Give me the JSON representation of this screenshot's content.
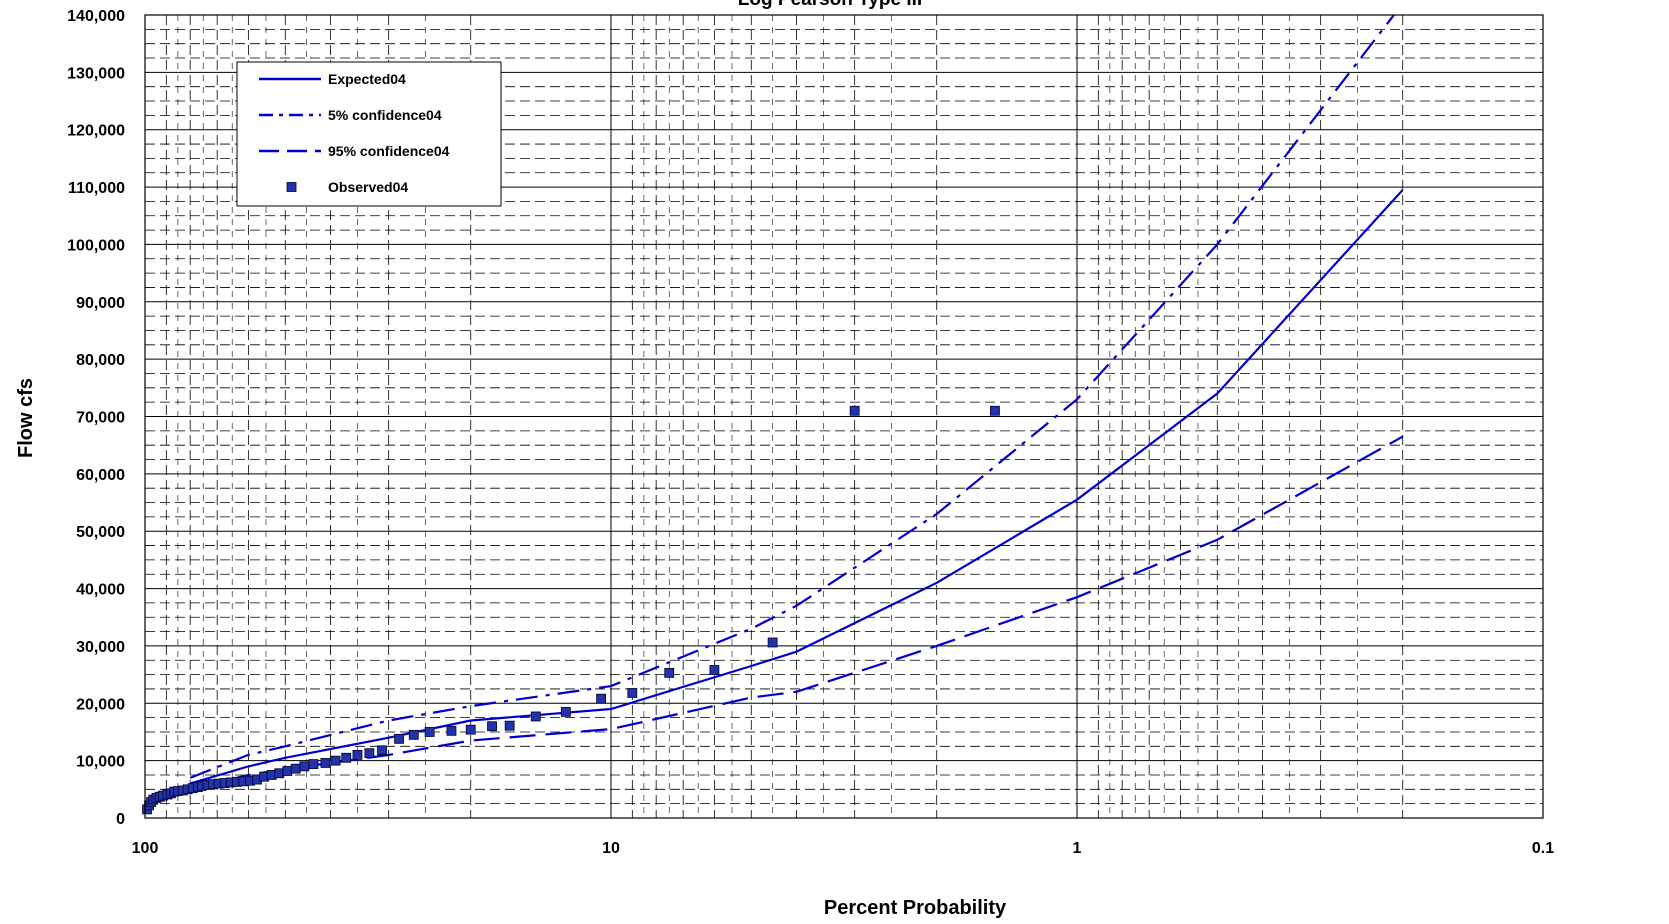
{
  "chart_data": {
    "type": "line",
    "title": "Log Pearson Type III",
    "xlabel": "Percent Probability",
    "ylabel": "Flow cfs",
    "x_scale": "log",
    "x_reversed": true,
    "xlim": [
      100,
      0.1
    ],
    "ylim": [
      0,
      140000
    ],
    "x_ticks": [
      100,
      10,
      1,
      0.1
    ],
    "x_tick_labels": [
      "100",
      "10",
      "1",
      "0.1"
    ],
    "y_ticks": [
      0,
      10000,
      20000,
      30000,
      40000,
      50000,
      60000,
      70000,
      80000,
      90000,
      100000,
      110000,
      120000,
      130000,
      140000
    ],
    "y_tick_labels": [
      "0",
      "10,000",
      "20,000",
      "30,000",
      "40,000",
      "50,000",
      "60,000",
      "70,000",
      "80,000",
      "90,000",
      "100,000",
      "110,000",
      "120,000",
      "130,000",
      "140,000"
    ],
    "grid": true,
    "legend_position": "top-left",
    "colors": {
      "series": "#0000CC",
      "marker": "#2233AA",
      "grid": "#000000"
    },
    "series": [
      {
        "name": "Expected04",
        "style": "solid",
        "x": [
          80,
          60,
          50,
          30,
          20,
          10,
          5,
          4,
          2,
          1,
          0.5,
          0.2
        ],
        "y": [
          6000,
          9000,
          10500,
          14000,
          17000,
          19000,
          26500,
          29000,
          41000,
          55500,
          74000,
          109500
        ]
      },
      {
        "name": "5% confidence04",
        "style": "dash-dot",
        "x": [
          80,
          60,
          50,
          30,
          20,
          10,
          5,
          4,
          2,
          1,
          0.5,
          0.2
        ],
        "y": [
          7000,
          11000,
          12500,
          17000,
          19500,
          23000,
          33000,
          37000,
          53000,
          73000,
          100000,
          142000
        ]
      },
      {
        "name": "95% confidence04",
        "style": "dash",
        "x": [
          80,
          60,
          50,
          30,
          20,
          10,
          5,
          4,
          2,
          1,
          0.5,
          0.2
        ],
        "y": [
          5000,
          7500,
          8500,
          11000,
          13500,
          15500,
          21000,
          22000,
          30000,
          38500,
          48500,
          66500
        ]
      },
      {
        "name": "Observed04",
        "style": "marker",
        "x": [
          99.0,
          98.0,
          97.0,
          96.0,
          94.5,
          93.0,
          91.5,
          89.5,
          88.0,
          86.5,
          85.0,
          83.0,
          81.0,
          79.0,
          77.0,
          75.5,
          73.5,
          71.5,
          69.5,
          67.5,
          65.5,
          63.5,
          61.5,
          59.5,
          57.5,
          55.5,
          53.5,
          51.5,
          49.5,
          47.5,
          45.5,
          43.5,
          41.0,
          39.0,
          37.0,
          35.0,
          33.0,
          31.0,
          28.5,
          26.5,
          24.5,
          22.0,
          20.0,
          18.0,
          16.5,
          14.5,
          12.5,
          10.5,
          9.0,
          7.5,
          6.0,
          4.5,
          3.0,
          1.5
        ],
        "y": [
          1500,
          2200,
          2800,
          3200,
          3500,
          3700,
          3900,
          4100,
          4300,
          4600,
          4700,
          4800,
          5000,
          5200,
          5400,
          5600,
          5800,
          5900,
          6000,
          6100,
          6200,
          6300,
          6400,
          6500,
          6700,
          7200,
          7500,
          7800,
          8200,
          8600,
          9000,
          9400,
          9600,
          10000,
          10500,
          11000,
          11300,
          11800,
          13800,
          14500,
          15000,
          15200,
          15400,
          16000,
          16100,
          17700,
          18500,
          20800,
          21800,
          25300,
          25800,
          30600,
          71000,
          71000
        ]
      }
    ],
    "legend_items": [
      "Expected04",
      "5% confidence04",
      "95% confidence04",
      "Observed04"
    ]
  }
}
